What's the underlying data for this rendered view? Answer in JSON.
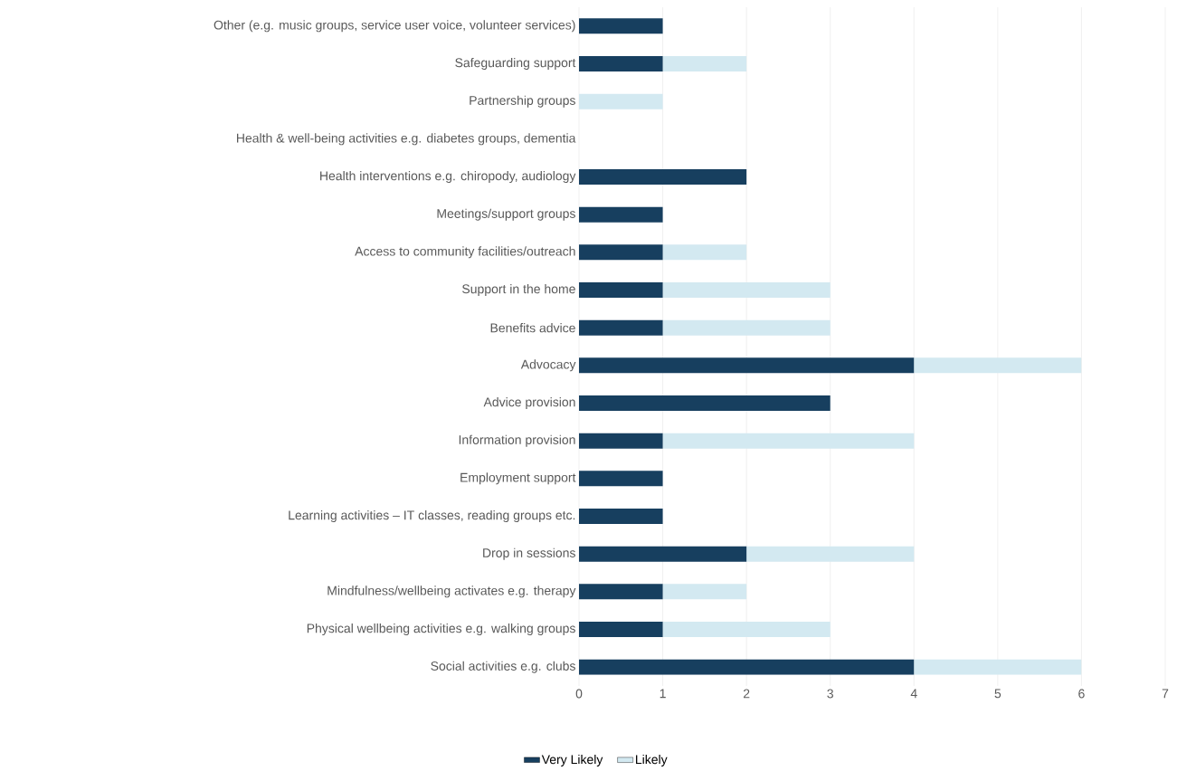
{
  "chart_data": {
    "type": "bar",
    "orientation": "horizontal",
    "stacked": true,
    "categories": [
      "Other (e.g. music groups, service user voice, volunteer services)",
      "Safeguarding support",
      "Partnership groups",
      "Health & well-being activities e.g. diabetes groups, dementia",
      "Health interventions e.g. chiropody, audiology",
      "Meetings/support groups",
      "Access to community facilities/outreach",
      "Support in the home",
      "Benefits advice",
      "Advocacy",
      "Advice provision",
      "Information provision",
      "Employment support",
      "Learning activities – IT classes, reading groups etc.",
      "Drop in sessions",
      "Mindfulness/wellbeing activates e.g. therapy",
      "Physical wellbeing activities e.g. walking groups",
      "Social activities e.g. clubs"
    ],
    "series": [
      {
        "name": "Very Likely",
        "color": "#173f5f",
        "values": [
          1,
          1,
          0,
          0,
          2,
          1,
          1,
          1,
          1,
          4,
          3,
          1,
          1,
          1,
          2,
          1,
          1,
          4
        ]
      },
      {
        "name": "Likely",
        "color": "#d3e9f1",
        "values": [
          0,
          1,
          1,
          0,
          0,
          0,
          1,
          2,
          2,
          2,
          0,
          3,
          0,
          0,
          2,
          1,
          2,
          2
        ]
      }
    ],
    "xlim": [
      0,
      7
    ],
    "xticks": [
      0,
      1,
      2,
      3,
      4,
      5,
      6,
      7
    ],
    "grid": "x",
    "legend": "bottom"
  }
}
